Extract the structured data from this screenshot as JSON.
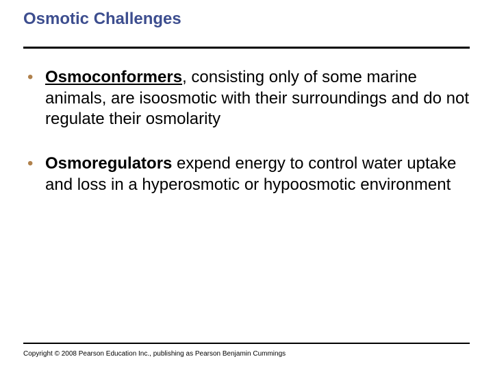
{
  "title": "Osmotic Challenges",
  "title_color": "#3d4e8f",
  "bullet_mark_color": "#b0814c",
  "bullets": [
    {
      "term": "Osmoconformers",
      "term_style": "bold-underline",
      "rest": ", consisting only of some marine animals, are isoosmotic with their surroundings and do not regulate their osmolarity"
    },
    {
      "term": "Osmoregulators",
      "term_style": "bold",
      "rest": " expend energy to control water uptake and loss in a hyperosmotic or hypoosmotic environment"
    }
  ],
  "copyright": "Copyright © 2008 Pearson Education Inc., publishing as Pearson Benjamin Cummings",
  "rule_color": "#000000",
  "background_color": "#ffffff",
  "body_fontsize": 24,
  "title_fontsize": 24,
  "copyright_fontsize": 10
}
